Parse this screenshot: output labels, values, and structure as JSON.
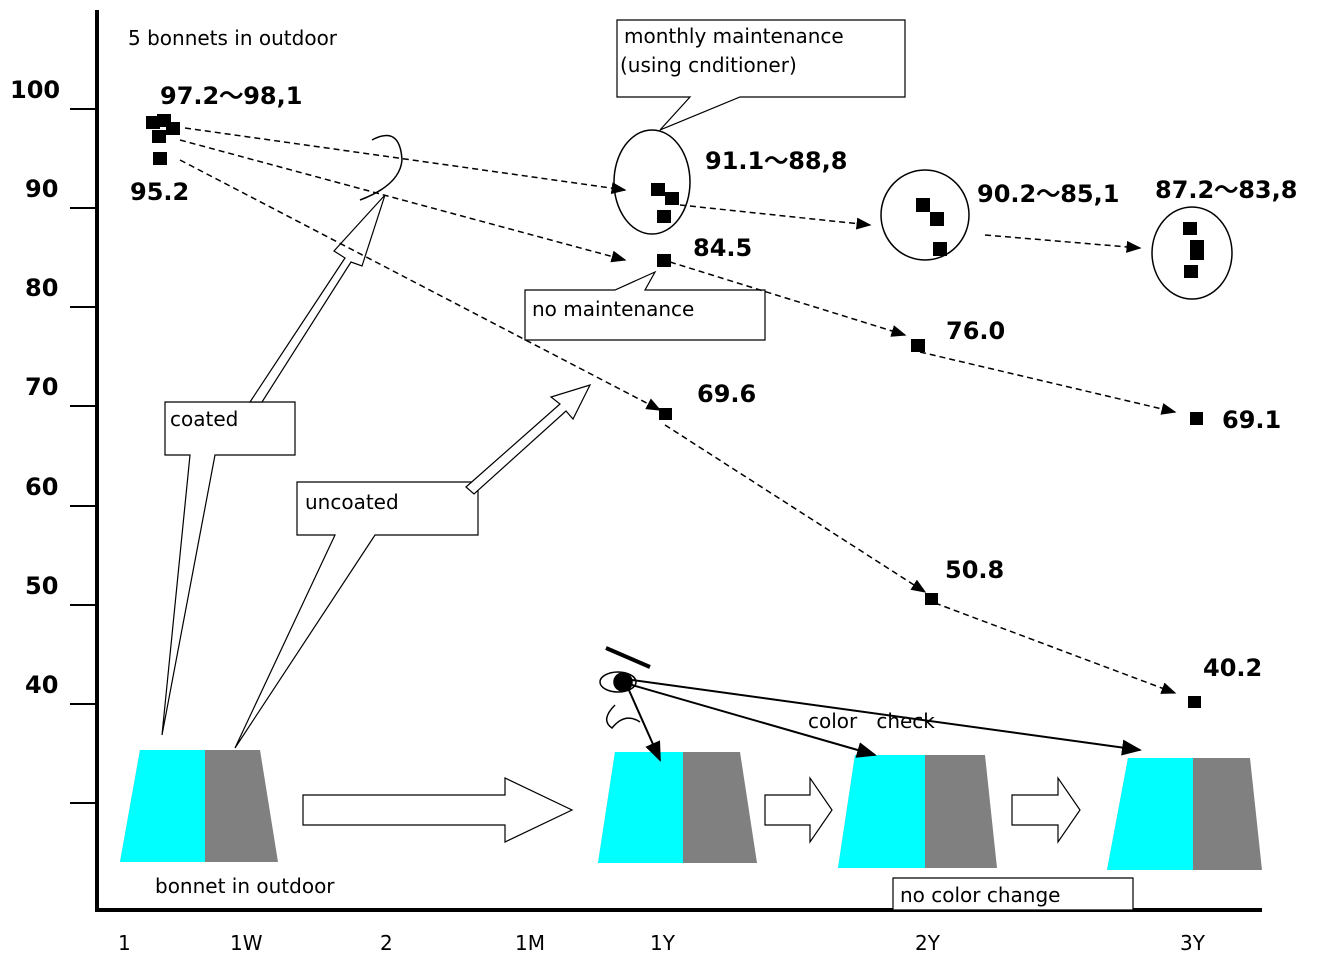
{
  "title": "5 bonnets in outdoor",
  "y_axis": {
    "labels": [
      "100",
      "90",
      "80",
      "70",
      "60",
      "50",
      "40"
    ]
  },
  "x_axis": {
    "labels": [
      "1",
      "1W",
      "2",
      "1M",
      "1Y",
      "2Y",
      "3Y"
    ]
  },
  "point_labels": [
    "97.2～98,1",
    "95.2",
    "91.1～88,8",
    "84.5",
    "69.6",
    "90.2～85,1",
    "76.0",
    "50.8",
    "87.2～83,8",
    "69.1",
    "40.2"
  ],
  "callouts": [
    "monthly maintenance",
    "(using cnditioner)",
    "no maintenance",
    "coated",
    "uncoated",
    "no color change"
  ],
  "captions": [
    "bonnet in outdoor",
    "color   check"
  ]
}
